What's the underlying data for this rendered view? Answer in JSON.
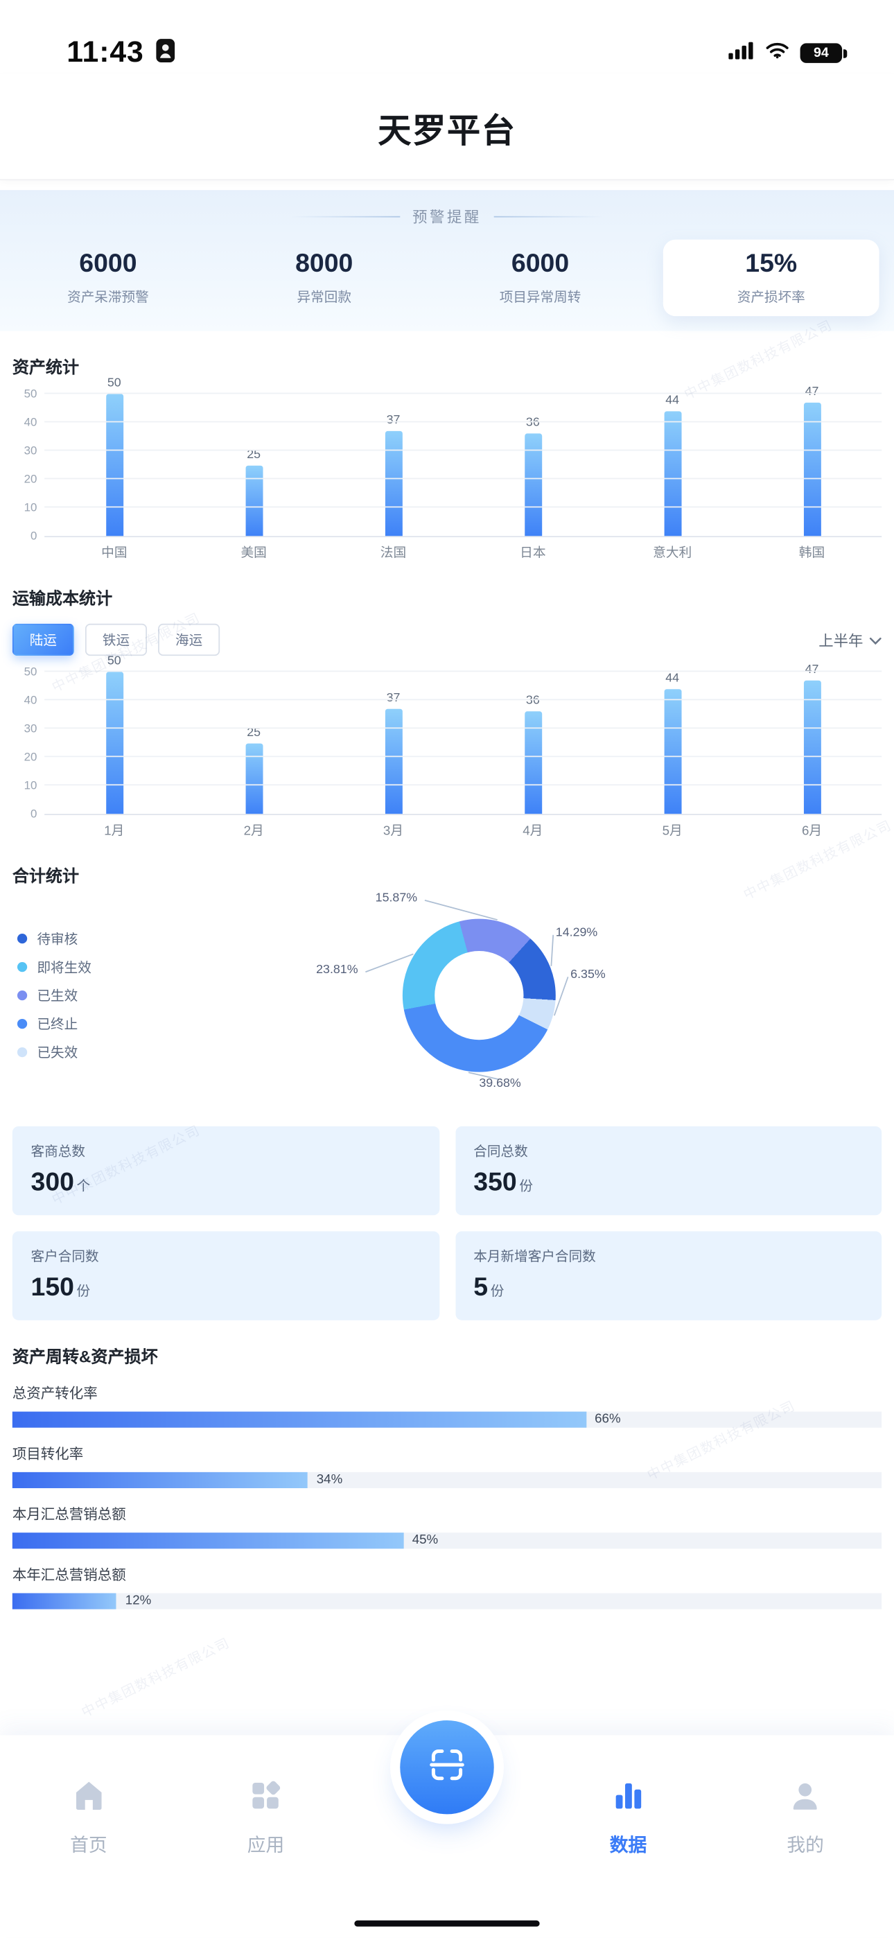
{
  "status_bar": {
    "time": "11:43",
    "battery_percent": "94"
  },
  "header": {
    "title": "天罗平台"
  },
  "alerts": {
    "title": "预警提醒",
    "items": [
      {
        "value": "6000",
        "label": "资产呆滞预警",
        "highlight": false
      },
      {
        "value": "8000",
        "label": "异常回款",
        "highlight": false
      },
      {
        "value": "6000",
        "label": "项目异常周转",
        "highlight": false
      },
      {
        "value": "15%",
        "label": "资产损坏率",
        "highlight": true
      }
    ]
  },
  "asset_section": {
    "title": "资产统计"
  },
  "transport_section": {
    "title": "运输成本统计",
    "tabs": [
      {
        "label": "陆运",
        "active": true
      },
      {
        "label": "铁运",
        "active": false
      },
      {
        "label": "海运",
        "active": false
      }
    ],
    "period": "上半年"
  },
  "total_section": {
    "title": "合计统计"
  },
  "turnover_section": {
    "title": "资产周转&资产损坏"
  },
  "stat_cards": [
    {
      "label": "客商总数",
      "value": "300",
      "unit": "个"
    },
    {
      "label": "合同总数",
      "value": "350",
      "unit": "份"
    },
    {
      "label": "客户合同数",
      "value": "150",
      "unit": "份"
    },
    {
      "label": "本月新增客户合同数",
      "value": "5",
      "unit": "份"
    }
  ],
  "chart_data": [
    {
      "type": "bar",
      "title": "资产统计",
      "categories": [
        "中国",
        "美国",
        "法国",
        "日本",
        "意大利",
        "韩国"
      ],
      "values": [
        50,
        25,
        37,
        36,
        44,
        47
      ],
      "ylim": [
        0,
        50
      ],
      "yticks": [
        0,
        10,
        20,
        30,
        40,
        50
      ],
      "grid": true,
      "bar_color_top": "#8fd0fb",
      "bar_color_bottom": "#3f82f7"
    },
    {
      "type": "bar",
      "title": "运输成本统计 - 陆运 - 上半年",
      "categories": [
        "1月",
        "2月",
        "3月",
        "4月",
        "5月",
        "6月"
      ],
      "values": [
        50,
        25,
        37,
        36,
        44,
        47
      ],
      "ylim": [
        0,
        50
      ],
      "yticks": [
        0,
        10,
        20,
        30,
        40,
        50
      ],
      "grid": true
    },
    {
      "type": "pie",
      "title": "合计统计",
      "donut": true,
      "legend_position": "left",
      "legend_order": [
        "待审核",
        "即将生效",
        "已生效",
        "已终止",
        "已失效"
      ],
      "segments": [
        {
          "label": "已生效",
          "value": 15.87,
          "color": "#7b8ff1"
        },
        {
          "label": "待审核",
          "value": 14.29,
          "color": "#2e66d9"
        },
        {
          "label": "已失效",
          "value": 6.35,
          "color": "#cfe3fa"
        },
        {
          "label": "已终止",
          "value": 39.68,
          "color": "#4a8cf7"
        },
        {
          "label": "即将生效",
          "value": 23.81,
          "color": "#56c3f4"
        }
      ]
    },
    {
      "type": "bar",
      "orientation": "horizontal",
      "title": "资产周转&资产损坏",
      "unit": "%",
      "items": [
        {
          "label": "总资产转化率",
          "value": 66
        },
        {
          "label": "项目转化率",
          "value": 34
        },
        {
          "label": "本月汇总营销总额",
          "value": 45
        },
        {
          "label": "本年汇总营销总额",
          "value": 12
        }
      ]
    }
  ],
  "tabbar": {
    "items": [
      {
        "label": "首页",
        "icon": "home-icon",
        "active": false
      },
      {
        "label": "应用",
        "icon": "apps-icon",
        "active": false
      },
      {
        "label": "数据",
        "icon": "chart-icon",
        "active": true
      },
      {
        "label": "我的",
        "icon": "user-icon",
        "active": false
      }
    ]
  },
  "watermark_text": "中中集团数科技有限公司",
  "colors": {
    "accent": "#3c7ef8",
    "card_bg": "#e9f3fe",
    "strip_bg": "#e7f1fc"
  }
}
